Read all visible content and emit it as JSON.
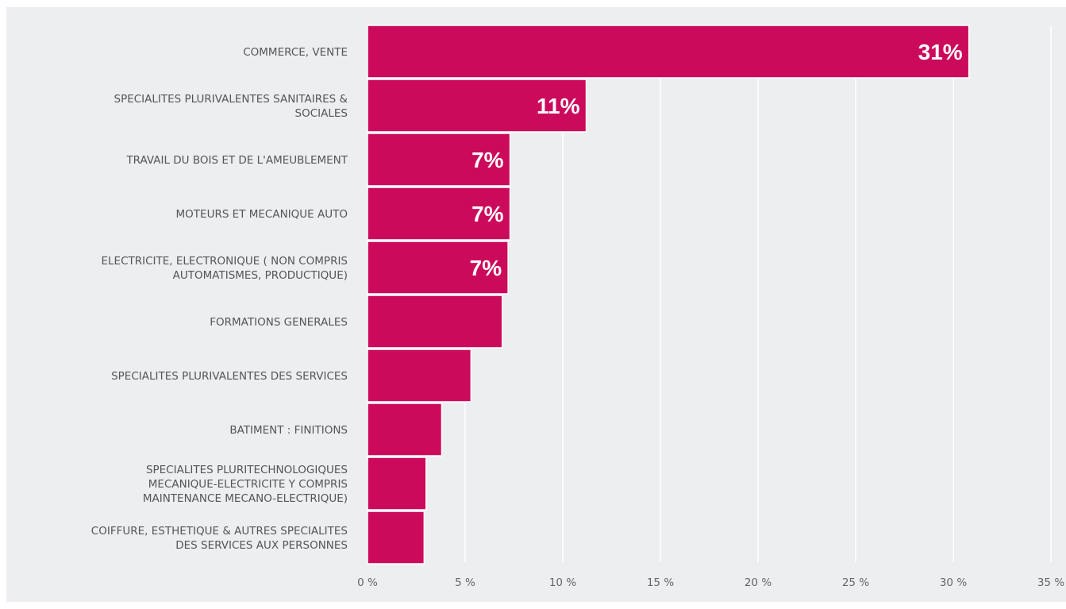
{
  "chart_data": {
    "type": "bar",
    "orientation": "horizontal",
    "title": "",
    "xlabel": "",
    "ylabel": "",
    "categories": [
      [
        "COMMERCE, VENTE"
      ],
      [
        "SPECIALITES PLURIVALENTES SANITAIRES &",
        "SOCIALES"
      ],
      [
        "TRAVAIL DU BOIS ET DE L'AMEUBLEMENT"
      ],
      [
        "MOTEURS ET MECANIQUE AUTO"
      ],
      [
        "ELECTRICITE, ELECTRONIQUE ( NON COMPRIS",
        "AUTOMATISMES, PRODUCTIQUE)"
      ],
      [
        "FORMATIONS GENERALES"
      ],
      [
        "SPECIALITES PLURIVALENTES DES SERVICES"
      ],
      [
        "BATIMENT : FINITIONS"
      ],
      [
        "SPECIALITES PLURITECHNOLOGIQUES",
        "MECANIQUE-ELECTRICITE Y COMPRIS",
        "MAINTENANCE MECANO-ELECTRIQUE)"
      ],
      [
        "COIFFURE, ESTHETIQUE & AUTRES SPECIALITES",
        "DES SERVICES AUX PERSONNES"
      ]
    ],
    "values": [
      30.8,
      11.2,
      7.3,
      7.3,
      7.2,
      6.9,
      5.3,
      3.8,
      3.0,
      2.9
    ],
    "data_labels": [
      "31%",
      "11%",
      "7%",
      "7%",
      "7%",
      "",
      "",
      "",
      "",
      ""
    ],
    "xlim": [
      0,
      35
    ],
    "x_ticks": [
      0,
      5,
      10,
      15,
      20,
      25,
      30,
      35
    ],
    "x_tick_labels": [
      "0 %",
      "5 %",
      "10 %",
      "15 %",
      "20 %",
      "25 %",
      "30 %",
      "35 %"
    ],
    "grid": true,
    "legend": "none",
    "colors": {
      "bar": "#cc0a5c",
      "bar_stroke": "#ffffff",
      "background": "#eceef0",
      "grid": "#ffffff",
      "label_text": "#555555",
      "data_label_text": "#ffffff"
    }
  }
}
